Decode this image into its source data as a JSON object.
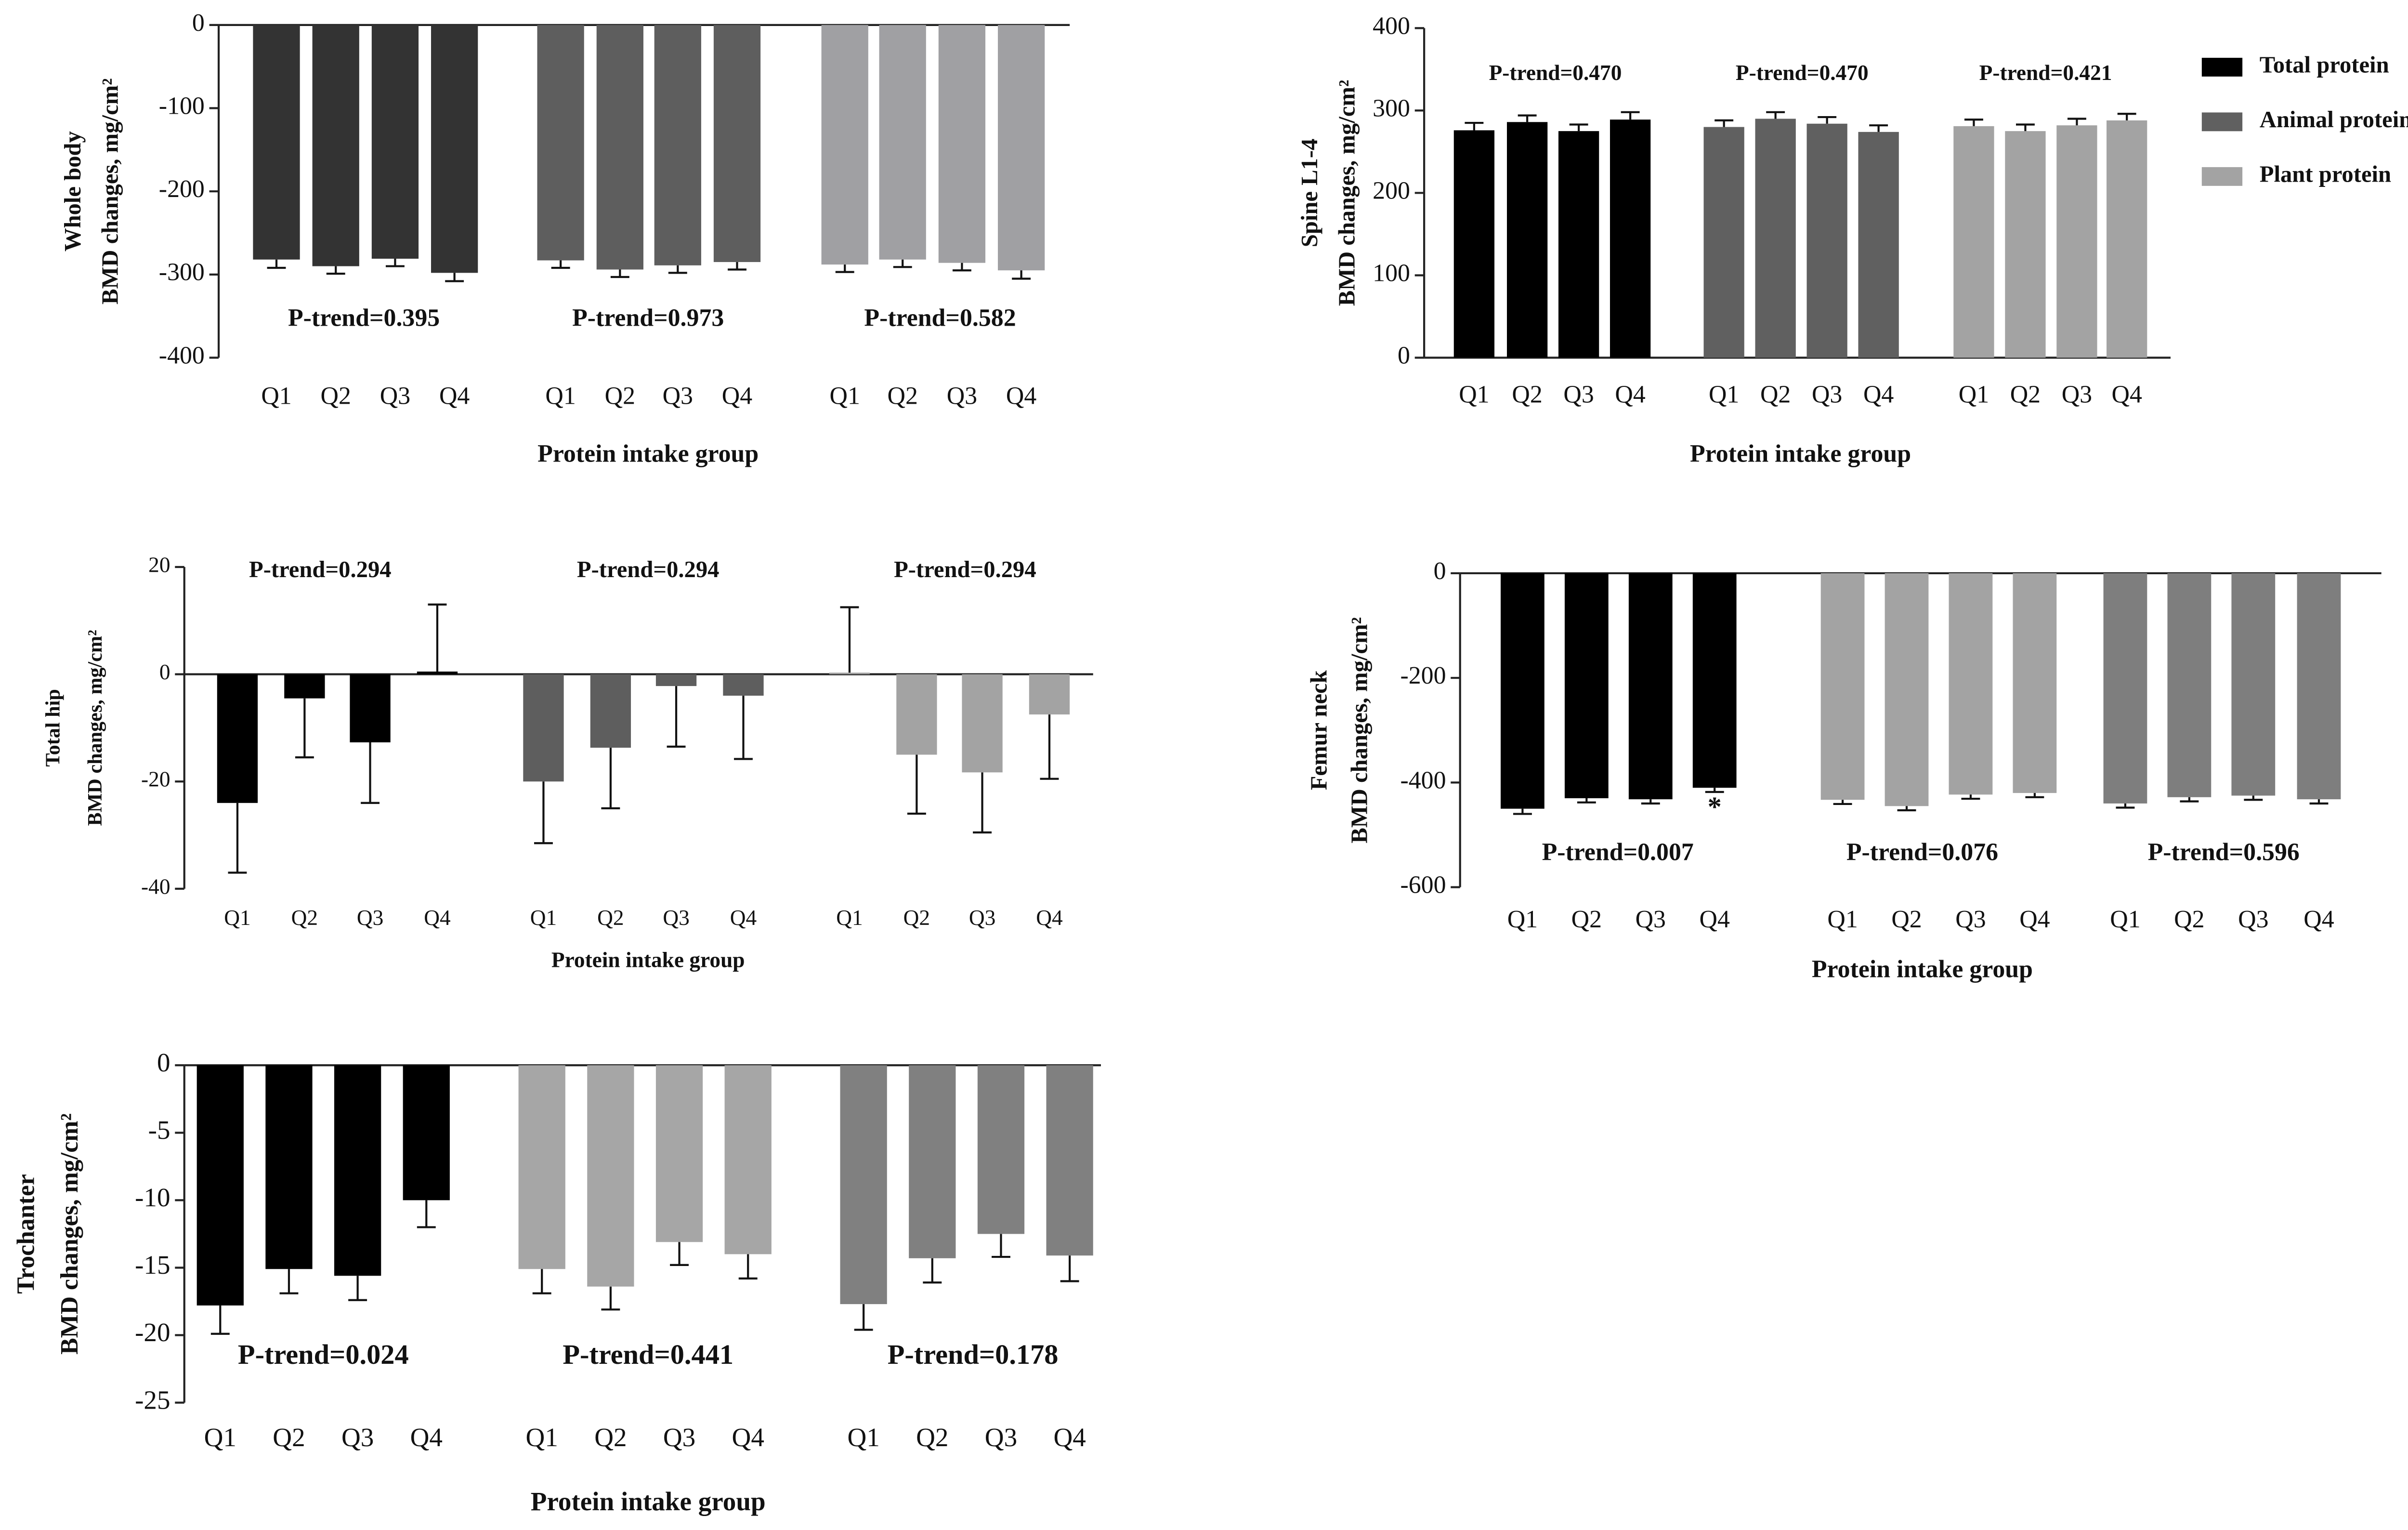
{
  "chart_data": [
    {
      "type": "bar",
      "ylabel": [
        "Whole body",
        "BMD changes, mg/cm²"
      ],
      "xlabel": "Protein intake group",
      "categories": [
        "Q1",
        "Q2",
        "Q3",
        "Q4"
      ],
      "ylim": [
        -400,
        0
      ],
      "yticks": [
        0,
        -100,
        -200,
        -300,
        -400
      ],
      "series": [
        {
          "color": "#333333",
          "values": [
            -282,
            -290,
            -281,
            -298
          ],
          "errors": [
            10,
            9,
            9,
            10
          ]
        },
        {
          "color": "#5e5e5e",
          "values": [
            -283,
            -294,
            -289,
            -285
          ],
          "errors": [
            9,
            9,
            9,
            9
          ]
        },
        {
          "color": "#a0a0a3",
          "values": [
            -288,
            -282,
            -286,
            -295
          ],
          "errors": [
            9,
            9,
            9,
            10
          ]
        }
      ],
      "annotations": [
        "P-trend=0.395",
        "P-trend=0.973",
        "P-trend=0.582"
      ]
    },
    {
      "type": "bar",
      "ylabel": [
        "Spine L1-4",
        "BMD changes, mg/cm²"
      ],
      "xlabel": "Protein intake group",
      "categories": [
        "Q1",
        "Q2",
        "Q3",
        "Q4"
      ],
      "ylim": [
        0,
        400
      ],
      "yticks": [
        0,
        100,
        200,
        300,
        400
      ],
      "series": [
        {
          "name": "Total protein",
          "color": "#000000",
          "values": [
            276,
            286,
            275,
            289
          ],
          "errors": [
            9,
            8,
            8,
            9
          ]
        },
        {
          "name": "Animal protein",
          "color": "#606060",
          "values": [
            280,
            290,
            284,
            274
          ],
          "errors": [
            8,
            8,
            8,
            8
          ]
        },
        {
          "name": "Plant protein",
          "color": "#a3a3a3",
          "values": [
            281,
            275,
            282,
            288
          ],
          "errors": [
            8,
            8,
            8,
            8
          ]
        }
      ],
      "annotations": [
        "P-trend=0.470",
        "P-trend=0.470",
        "P-trend=0.421"
      ],
      "legend": "top-right"
    },
    {
      "type": "bar",
      "ylabel": [
        "Total hip",
        "BMD changes, mg/cm²"
      ],
      "xlabel": "Protein intake group",
      "categories": [
        "Q1",
        "Q2",
        "Q3",
        "Q4"
      ],
      "ylim": [
        -40,
        20
      ],
      "yticks": [
        20,
        0,
        -20,
        -40
      ],
      "series": [
        {
          "color": "#000000",
          "values": [
            -24,
            -4.5,
            -12.7,
            0.5
          ],
          "errors": [
            13,
            11,
            11.3,
            12.5
          ]
        },
        {
          "color": "#5e5e5e",
          "values": [
            -20,
            -13.7,
            -2.2,
            -4
          ],
          "errors": [
            11.5,
            11.3,
            11.3,
            11.8
          ]
        },
        {
          "color": "#a3a3a3",
          "values": [
            0.3,
            -15,
            -18.3,
            -7.5
          ],
          "errors": [
            12.2,
            11,
            11.2,
            12
          ]
        }
      ],
      "annotations": [
        "P-trend=0.294",
        "P-trend=0.294",
        "P-trend=0.294"
      ]
    },
    {
      "type": "bar",
      "ylabel": [
        "Femur neck",
        "BMD changes, mg/cm²"
      ],
      "xlabel": "Protein intake group",
      "categories": [
        "Q1",
        "Q2",
        "Q3",
        "Q4"
      ],
      "ylim": [
        -600,
        0
      ],
      "yticks": [
        0,
        -200,
        -400,
        -600
      ],
      "series": [
        {
          "color": "#000000",
          "values": [
            -450,
            -430,
            -432,
            -410
          ],
          "errors": [
            10,
            8,
            8,
            8
          ]
        },
        {
          "color": "#a3a3a3",
          "values": [
            -433,
            -445,
            -423,
            -420
          ],
          "errors": [
            8,
            8,
            8,
            8
          ]
        },
        {
          "color": "#7e7e7e",
          "values": [
            -440,
            -428,
            -425,
            -432
          ],
          "errors": [
            8,
            8,
            8,
            8
          ]
        }
      ],
      "annotations": [
        "P-trend=0.007",
        "P-trend=0.076",
        "P-trend=0.596"
      ],
      "significance": "*"
    },
    {
      "type": "bar",
      "ylabel": [
        "Trochanter",
        "BMD changes, mg/cm²"
      ],
      "xlabel": "Protein intake group",
      "categories": [
        "Q1",
        "Q2",
        "Q3",
        "Q4"
      ],
      "ylim": [
        -25,
        0
      ],
      "yticks": [
        0,
        -5,
        -10,
        -15,
        -20,
        -25
      ],
      "series": [
        {
          "color": "#000000",
          "values": [
            -17.8,
            -15.1,
            -15.6,
            -10
          ],
          "errors": [
            2.1,
            1.8,
            1.8,
            2
          ]
        },
        {
          "color": "#a6a6a6",
          "values": [
            -15.1,
            -16.4,
            -13.1,
            -14
          ],
          "errors": [
            1.8,
            1.7,
            1.7,
            1.8
          ]
        },
        {
          "color": "#808080",
          "values": [
            -17.7,
            -14.3,
            -12.5,
            -14.1
          ],
          "errors": [
            1.9,
            1.8,
            1.7,
            1.9
          ]
        }
      ],
      "annotations": [
        "P-trend=0.024",
        "P-trend=0.441",
        "P-trend=0.178"
      ]
    }
  ]
}
